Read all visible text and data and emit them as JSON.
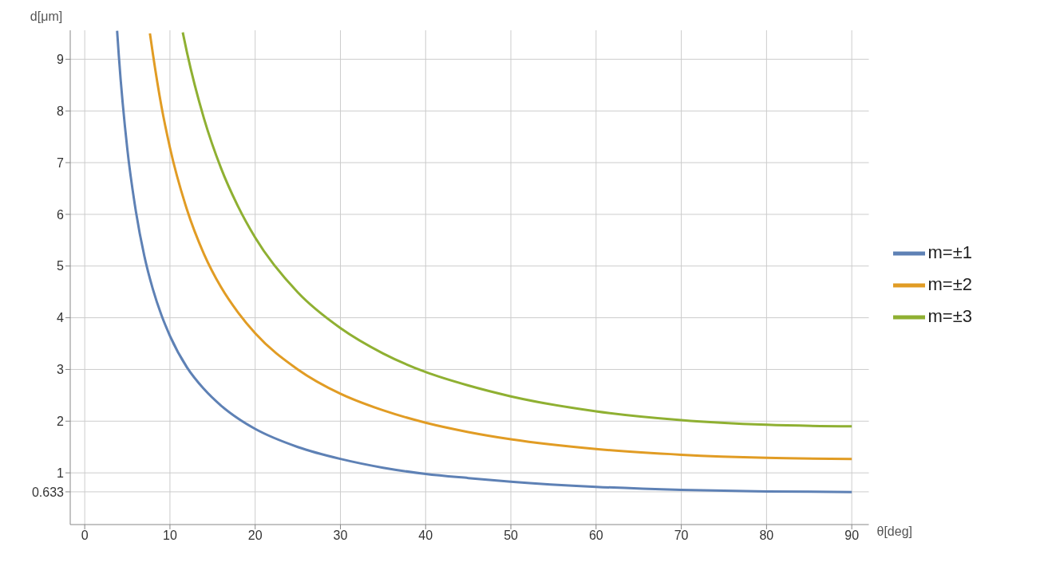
{
  "chart_data": {
    "type": "line",
    "xlabel": "θ[deg]",
    "ylabel": "d[μm]",
    "x": [
      3.8,
      4,
      5,
      6,
      7,
      7.65,
      8,
      9,
      10,
      11.5,
      12,
      14,
      16,
      18,
      20,
      25,
      30,
      35,
      40,
      45,
      50,
      60,
      70,
      80,
      90
    ],
    "series": [
      {
        "name": "m=±1",
        "color": "#5e81b5",
        "values": [
          9.55,
          9.07,
          7.26,
          6.06,
          5.19,
          null,
          4.55,
          4.05,
          3.65,
          null,
          3.04,
          2.62,
          2.3,
          2.05,
          1.85,
          1.5,
          1.27,
          1.1,
          0.98,
          0.9,
          0.83,
          0.73,
          0.67,
          0.64,
          0.63
        ]
      },
      {
        "name": "m=±2",
        "color": "#e19c24",
        "values": [
          null,
          null,
          null,
          null,
          null,
          9.5,
          9.1,
          8.09,
          7.29,
          null,
          6.09,
          5.23,
          4.59,
          4.1,
          3.7,
          3,
          2.53,
          2.21,
          1.97,
          1.79,
          1.65,
          1.46,
          1.35,
          1.29,
          1.27
        ]
      },
      {
        "name": "m=±3",
        "color": "#8fb032",
        "values": [
          null,
          null,
          null,
          null,
          null,
          null,
          null,
          null,
          null,
          9.52,
          9.13,
          7.85,
          6.89,
          6.15,
          5.55,
          4.49,
          3.8,
          3.31,
          2.95,
          2.69,
          2.48,
          2.19,
          2.02,
          1.93,
          1.9
        ]
      }
    ],
    "xlim": [
      -1.7,
      92
    ],
    "xticks": [
      0,
      10,
      20,
      30,
      40,
      50,
      60,
      70,
      80,
      90
    ],
    "ylim": [
      0,
      9.56
    ],
    "yticks": [
      0.633,
      1,
      2,
      3,
      4,
      5,
      6,
      7,
      8,
      9
    ],
    "grid": true,
    "legend": "right",
    "line_style": "solid"
  }
}
